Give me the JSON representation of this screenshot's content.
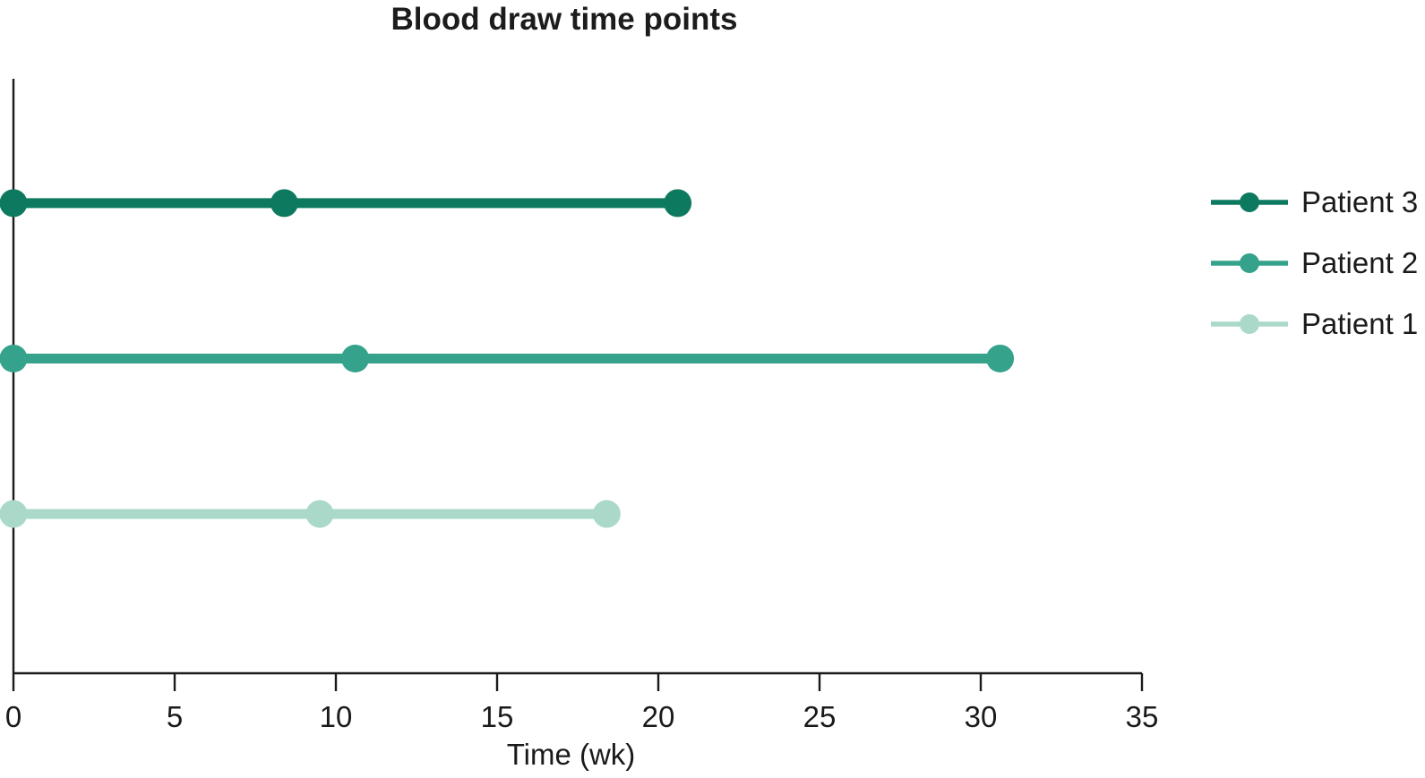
{
  "page": {
    "background": "#ffffff"
  },
  "chart_data": {
    "type": "line",
    "style": "timeline-lollipop",
    "title": "Blood draw time points",
    "xlabel": "Time (wk)",
    "ylabel": "",
    "xlim": [
      0,
      35
    ],
    "xticks": [
      0,
      5,
      10,
      15,
      20,
      25,
      30,
      35
    ],
    "grid": false,
    "legend_position": "right-of-plot",
    "axis_color": "#1a1a1a",
    "text_color": "#1a1a1a",
    "series": [
      {
        "name": "Patient 3",
        "color": "#0d7a5f",
        "y_row": 3,
        "x": [
          0,
          8.4,
          20.6
        ]
      },
      {
        "name": "Patient 2",
        "color": "#35a28b",
        "y_row": 2,
        "x": [
          0,
          10.6,
          30.6
        ]
      },
      {
        "name": "Patient 1",
        "color": "#aad9ca",
        "y_row": 1,
        "x": [
          0,
          9.5,
          18.4
        ]
      }
    ]
  }
}
